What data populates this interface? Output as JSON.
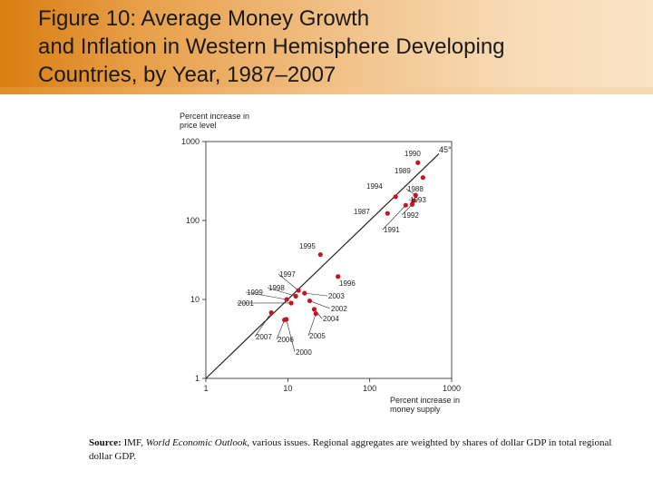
{
  "slide": {
    "title": "Figure 10: Average Money Growth\nand Inflation in Western Hemisphere Developing\nCountries, by Year, 1987–2007"
  },
  "source": {
    "label": "Source:",
    "pre": " IMF, ",
    "italic": "World Economic Outlook",
    "post": ", various issues. Regional aggregates are weighted by shares of dollar GDP in total regional dollar GDP."
  },
  "chart_data": {
    "type": "scatter",
    "title": "",
    "xlabel": "Percent increase in money supply",
    "ylabel": "Percent increase in price level",
    "xscale": "log",
    "yscale": "log",
    "xlim": [
      1,
      1000
    ],
    "ylim": [
      1,
      1000
    ],
    "xticks": [
      "1",
      "10",
      "100",
      "1000"
    ],
    "yticks": [
      "1",
      "10",
      "100",
      "1000"
    ],
    "reference_line_label": "45°",
    "point_color": "#c8141e",
    "grid": false,
    "points": [
      {
        "label": "1990",
        "x": 387,
        "y": 540
      },
      {
        "label": "1989",
        "x": 446,
        "y": 350
      },
      {
        "label": "1988",
        "x": 363,
        "y": 209
      },
      {
        "label": "1993",
        "x": 344,
        "y": 179
      },
      {
        "label": "1992",
        "x": 330,
        "y": 160
      },
      {
        "label": "1991",
        "x": 275,
        "y": 156
      },
      {
        "label": "1994",
        "x": 207,
        "y": 200
      },
      {
        "label": "1987",
        "x": 165,
        "y": 123
      },
      {
        "label": "1995",
        "x": 25,
        "y": 37
      },
      {
        "label": "1996",
        "x": 41,
        "y": 19.5
      },
      {
        "label": "1997",
        "x": 13.5,
        "y": 13
      },
      {
        "label": "1998",
        "x": 12.5,
        "y": 11
      },
      {
        "label": "1999",
        "x": 9.7,
        "y": 10
      },
      {
        "label": "2003",
        "x": 16,
        "y": 12
      },
      {
        "label": "2002",
        "x": 18.5,
        "y": 9.6
      },
      {
        "label": "2001",
        "x": 11,
        "y": 9
      },
      {
        "label": "2004",
        "x": 21,
        "y": 7.5
      },
      {
        "label": "2005",
        "x": 22,
        "y": 6.6
      },
      {
        "label": "2000",
        "x": 9.6,
        "y": 5.6
      },
      {
        "label": "2006",
        "x": 9.1,
        "y": 5.5
      },
      {
        "label": "2007",
        "x": 6.3,
        "y": 6.8
      }
    ]
  }
}
